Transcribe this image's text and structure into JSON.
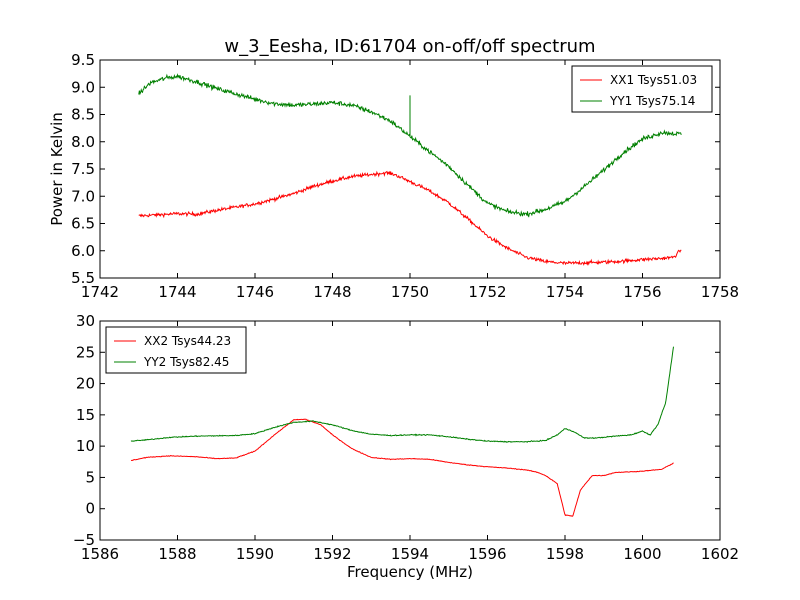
{
  "chart_data": [
    {
      "type": "line",
      "title": "w_3_Eesha, ID:61704 on-off/off spectrum",
      "xlabel": "",
      "ylabel": "Power in Kelvin",
      "xlim": [
        1742,
        1758
      ],
      "ylim": [
        5.5,
        9.5
      ],
      "xticks": [
        "1742",
        "1744",
        "1746",
        "1748",
        "1750",
        "1752",
        "1754",
        "1756",
        "1758"
      ],
      "yticks": [
        "5.5",
        "6.0",
        "6.5",
        "7.0",
        "7.5",
        "8.0",
        "8.5",
        "9.0",
        "9.5"
      ],
      "legend_position": "top-right",
      "series": [
        {
          "name": "XX1 Tsys51.03",
          "color": "#ff0000",
          "noise": 0.03,
          "points": [
            [
              1743.0,
              6.64
            ],
            [
              1743.5,
              6.66
            ],
            [
              1744.0,
              6.68
            ],
            [
              1744.5,
              6.67
            ],
            [
              1745.0,
              6.74
            ],
            [
              1745.5,
              6.8
            ],
            [
              1746.0,
              6.86
            ],
            [
              1746.5,
              6.95
            ],
            [
              1747.0,
              7.05
            ],
            [
              1747.5,
              7.18
            ],
            [
              1748.0,
              7.28
            ],
            [
              1748.5,
              7.36
            ],
            [
              1749.0,
              7.4
            ],
            [
              1749.4,
              7.43
            ],
            [
              1749.6,
              7.4
            ],
            [
              1750.0,
              7.27
            ],
            [
              1750.5,
              7.1
            ],
            [
              1751.0,
              6.88
            ],
            [
              1751.5,
              6.58
            ],
            [
              1752.0,
              6.27
            ],
            [
              1752.5,
              6.05
            ],
            [
              1753.0,
              5.88
            ],
            [
              1753.5,
              5.8
            ],
            [
              1754.0,
              5.77
            ],
            [
              1754.5,
              5.78
            ],
            [
              1755.0,
              5.79
            ],
            [
              1755.5,
              5.81
            ],
            [
              1756.0,
              5.84
            ],
            [
              1756.5,
              5.86
            ],
            [
              1756.8,
              5.88
            ],
            [
              1757.0,
              6.02
            ]
          ]
        },
        {
          "name": "YY1 Tsys75.14",
          "color": "#008000",
          "noise": 0.04,
          "points": [
            [
              1743.0,
              8.88
            ],
            [
              1743.3,
              9.08
            ],
            [
              1743.7,
              9.17
            ],
            [
              1744.0,
              9.2
            ],
            [
              1744.5,
              9.1
            ],
            [
              1745.0,
              8.98
            ],
            [
              1745.5,
              8.88
            ],
            [
              1746.0,
              8.78
            ],
            [
              1746.5,
              8.7
            ],
            [
              1747.0,
              8.67
            ],
            [
              1747.5,
              8.69
            ],
            [
              1748.0,
              8.72
            ],
            [
              1748.5,
              8.67
            ],
            [
              1749.0,
              8.55
            ],
            [
              1749.5,
              8.38
            ],
            [
              1750.0,
              8.1
            ],
            [
              1750.5,
              7.82
            ],
            [
              1751.0,
              7.55
            ],
            [
              1751.5,
              7.2
            ],
            [
              1752.0,
              6.87
            ],
            [
              1752.5,
              6.72
            ],
            [
              1753.0,
              6.67
            ],
            [
              1753.5,
              6.76
            ],
            [
              1754.0,
              6.9
            ],
            [
              1754.5,
              7.18
            ],
            [
              1755.0,
              7.48
            ],
            [
              1755.5,
              7.8
            ],
            [
              1756.0,
              8.05
            ],
            [
              1756.5,
              8.17
            ],
            [
              1757.0,
              8.14
            ]
          ],
          "spikes": [
            [
              1750.0,
              8.85
            ]
          ]
        }
      ]
    },
    {
      "type": "line",
      "title": "",
      "xlabel": "Frequency (MHz)",
      "ylabel": "",
      "xlim": [
        1586,
        1602
      ],
      "ylim": [
        -5,
        30
      ],
      "xticks": [
        "1586",
        "1588",
        "1590",
        "1592",
        "1594",
        "1596",
        "1598",
        "1600",
        "1602"
      ],
      "yticks": [
        "−5",
        "0",
        "5",
        "10",
        "15",
        "20",
        "25",
        "30"
      ],
      "legend_position": "top-left",
      "series": [
        {
          "name": "XX2 Tsys44.23",
          "color": "#ff0000",
          "noise": 0.05,
          "points": [
            [
              1586.8,
              7.7
            ],
            [
              1587.2,
              8.2
            ],
            [
              1587.8,
              8.45
            ],
            [
              1588.5,
              8.3
            ],
            [
              1589.0,
              8.0
            ],
            [
              1589.5,
              8.1
            ],
            [
              1590.0,
              9.2
            ],
            [
              1590.5,
              11.8
            ],
            [
              1591.0,
              14.2
            ],
            [
              1591.3,
              14.3
            ],
            [
              1591.7,
              13.4
            ],
            [
              1592.0,
              11.8
            ],
            [
              1592.5,
              9.6
            ],
            [
              1593.0,
              8.2
            ],
            [
              1593.5,
              7.9
            ],
            [
              1594.0,
              8.0
            ],
            [
              1594.5,
              7.9
            ],
            [
              1595.0,
              7.4
            ],
            [
              1595.5,
              7.0
            ],
            [
              1596.0,
              6.7
            ],
            [
              1596.5,
              6.5
            ],
            [
              1597.0,
              6.2
            ],
            [
              1597.3,
              5.8
            ],
            [
              1597.5,
              5.3
            ],
            [
              1597.8,
              4.0
            ],
            [
              1598.0,
              -1.0
            ],
            [
              1598.2,
              -1.2
            ],
            [
              1598.4,
              3.0
            ],
            [
              1598.7,
              5.3
            ],
            [
              1599.0,
              5.3
            ],
            [
              1599.3,
              5.8
            ],
            [
              1599.7,
              5.9
            ],
            [
              1600.0,
              6.0
            ],
            [
              1600.5,
              6.3
            ],
            [
              1600.8,
              7.3
            ]
          ]
        },
        {
          "name": "YY2 Tsys82.45",
          "color": "#008000",
          "noise": 0.07,
          "points": [
            [
              1586.8,
              10.8
            ],
            [
              1587.2,
              11.0
            ],
            [
              1587.8,
              11.4
            ],
            [
              1588.5,
              11.6
            ],
            [
              1589.5,
              11.7
            ],
            [
              1590.0,
              12.0
            ],
            [
              1590.5,
              13.0
            ],
            [
              1591.0,
              13.8
            ],
            [
              1591.5,
              14.0
            ],
            [
              1592.0,
              13.4
            ],
            [
              1592.5,
              12.5
            ],
            [
              1593.0,
              11.9
            ],
            [
              1593.5,
              11.7
            ],
            [
              1594.0,
              11.8
            ],
            [
              1594.5,
              11.8
            ],
            [
              1595.0,
              11.5
            ],
            [
              1595.5,
              11.1
            ],
            [
              1596.0,
              10.8
            ],
            [
              1596.5,
              10.7
            ],
            [
              1597.0,
              10.7
            ],
            [
              1597.5,
              10.9
            ],
            [
              1597.8,
              11.8
            ],
            [
              1598.0,
              12.8
            ],
            [
              1598.2,
              12.4
            ],
            [
              1598.5,
              11.3
            ],
            [
              1598.8,
              11.3
            ],
            [
              1599.3,
              11.6
            ],
            [
              1599.7,
              11.8
            ],
            [
              1600.0,
              12.4
            ],
            [
              1600.2,
              11.8
            ],
            [
              1600.4,
              13.5
            ],
            [
              1600.6,
              17.0
            ],
            [
              1600.8,
              25.9
            ]
          ]
        }
      ]
    }
  ]
}
